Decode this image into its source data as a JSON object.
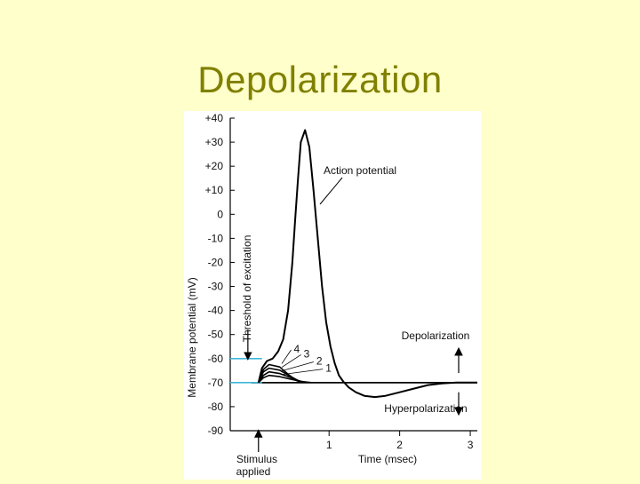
{
  "slide": {
    "title": "Depolarization"
  },
  "chart_data": {
    "type": "line",
    "title": "",
    "xlabel": "Time (msec)",
    "ylabel": "Membrane potential (mV)",
    "x_ticks": [
      "1",
      "2",
      "3"
    ],
    "y_ticks": [
      "+40",
      "+30",
      "+20",
      "+10",
      "0",
      "-10",
      "-20",
      "-30",
      "-40",
      "-50",
      "-60",
      "-70",
      "-80",
      "-90"
    ],
    "ylim": [
      -90,
      40
    ],
    "xlim": [
      -0.4,
      3.1
    ],
    "grid": false,
    "resting_potential": -70,
    "threshold": -60,
    "series": [
      {
        "x": [
          0,
          0.05,
          0.12,
          0.2,
          0.28,
          0.35,
          0.42,
          0.48,
          0.52,
          0.56,
          0.6,
          0.66,
          0.72,
          0.78,
          0.84,
          0.9,
          0.96,
          1.02,
          1.08,
          1.14,
          1.2,
          1.28,
          1.38,
          1.5,
          1.65,
          1.8,
          2.0,
          2.2,
          2.4,
          2.6,
          2.8,
          3.1
        ],
        "y": [
          -70,
          -64,
          -61,
          -60,
          -57,
          -52,
          -40,
          -20,
          -2,
          15,
          30,
          35,
          28,
          10,
          -10,
          -30,
          -45,
          -55,
          -62,
          -67,
          -69.5,
          -72,
          -74,
          -75.5,
          -76,
          -75.5,
          -74,
          -72.5,
          -71,
          -70.3,
          -70,
          -70
        ]
      },
      {
        "name": "1",
        "x": [
          0,
          0.07,
          0.15,
          0.3,
          0.45,
          0.6,
          0.75
        ],
        "y": [
          -70,
          -68,
          -67,
          -67.5,
          -68.5,
          -69.5,
          -70
        ]
      },
      {
        "name": "2",
        "x": [
          0,
          0.07,
          0.15,
          0.3,
          0.45,
          0.58,
          0.7
        ],
        "y": [
          -70,
          -67,
          -65.5,
          -66.2,
          -67.8,
          -69.3,
          -70
        ]
      },
      {
        "name": "3",
        "x": [
          0,
          0.07,
          0.15,
          0.3,
          0.43,
          0.55,
          0.65
        ],
        "y": [
          -70,
          -65.5,
          -64,
          -64.8,
          -67,
          -69,
          -70
        ]
      },
      {
        "name": "4",
        "x": [
          0,
          0.07,
          0.15,
          0.3,
          0.42,
          0.52,
          0.6
        ],
        "y": [
          -70,
          -64.5,
          -62.5,
          -63.5,
          -66.5,
          -68.8,
          -70
        ]
      }
    ],
    "annotations": {
      "action_potential": "Action potential",
      "threshold": "Threshold of excitation",
      "depolarization": "Depolarization",
      "hyperpolarization": "Hyperpolarization",
      "stimulus": [
        "Stimulus",
        "applied"
      ]
    },
    "colors": {
      "threshold_marker": "#3fb7d8",
      "curve": "#000000"
    }
  }
}
